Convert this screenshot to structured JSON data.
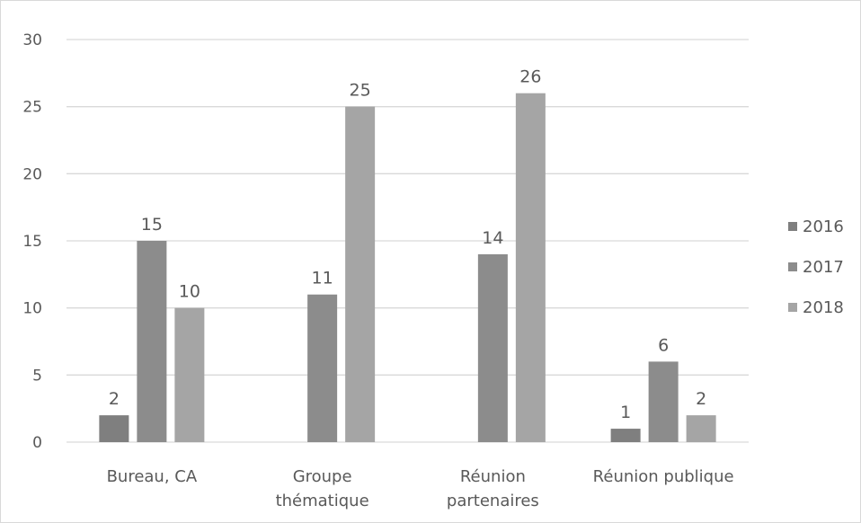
{
  "chart_data": {
    "type": "bar",
    "categories": [
      [
        "Bureau, CA"
      ],
      [
        "Groupe",
        "thématique"
      ],
      [
        "Réunion",
        "partenaires"
      ],
      [
        "Réunion publique"
      ]
    ],
    "series": [
      {
        "name": "2016",
        "color": "#7f7f7f",
        "values": [
          2,
          null,
          null,
          1
        ]
      },
      {
        "name": "2017",
        "color": "#8c8c8c",
        "values": [
          15,
          11,
          14,
          6
        ]
      },
      {
        "name": "2018",
        "color": "#a5a5a5",
        "values": [
          10,
          25,
          26,
          2
        ]
      }
    ],
    "yticks": [
      "0",
      "5",
      "10",
      "15",
      "20",
      "25",
      "30"
    ],
    "ylim": [
      0,
      30
    ],
    "legend_position": "right",
    "grid": true,
    "data_labels": true
  }
}
